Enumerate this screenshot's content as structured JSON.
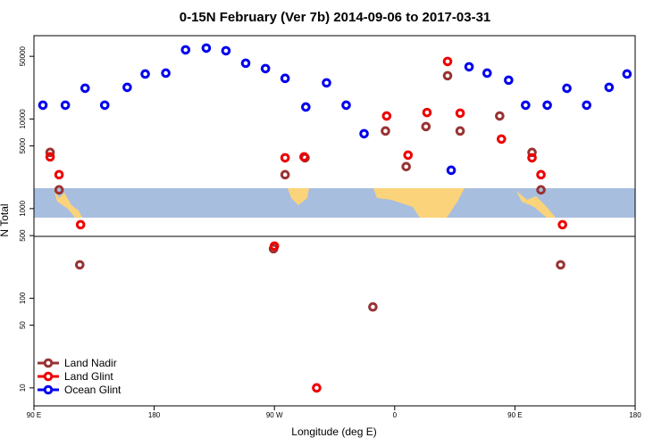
{
  "chart_data": {
    "type": "scatter",
    "title": "0-15N February (Ver 7b)   2014-09-06 to 2017-03-31",
    "x_label": "Longitude (deg E)",
    "y_label": "N Total",
    "log_y": true,
    "xlim": [
      90,
      540
    ],
    "ylim": [
      6.3,
      85000
    ],
    "xticks": [
      {
        "value": 90,
        "label": "90 E"
      },
      {
        "value": 180,
        "label": "180"
      },
      {
        "value": 270,
        "label": "90 W"
      },
      {
        "value": 360,
        "label": "0"
      },
      {
        "value": 450,
        "label": "90 E"
      },
      {
        "value": 540,
        "label": "180"
      }
    ],
    "yticks": [
      10,
      50,
      100,
      500,
      1000,
      5000,
      10000,
      50000
    ],
    "legend": "bottom-left",
    "series": [
      {
        "name": "Land Nadir",
        "color": "#993333",
        "x": [
          102.1,
          108.8,
          124.3,
          269.3,
          278,
          292.9,
          343.7,
          353.1,
          368.6,
          383.4,
          399.6,
          409,
          438.6,
          462.8,
          469.5,
          484.2
        ],
        "values": [
          4240,
          1620,
          236,
          357,
          2390,
          3690,
          80,
          7350,
          2940,
          8230,
          30400,
          7350,
          10800,
          4240,
          1620,
          236
        ]
      },
      {
        "name": "Land Glint",
        "color": "#ee0000",
        "x": [
          102.1,
          108.8,
          124.9,
          270,
          278,
          292.2,
          301.6,
          354,
          370,
          384.2,
          399.6,
          409,
          439.9,
          462.8,
          469.5,
          485.6
        ],
        "values": [
          3780,
          2390,
          662,
          382,
          3690,
          3780,
          10,
          10800,
          3950,
          11800,
          43800,
          11600,
          5970,
          3690,
          2390,
          662
        ]
      },
      {
        "name": "Ocean Glint",
        "color": "#0000ee",
        "x": [
          96.7,
          113.5,
          128.3,
          143,
          159.8,
          173.3,
          188.7,
          203.5,
          219,
          233.7,
          248.5,
          263.3,
          278,
          293.5,
          309,
          323.7,
          337.1,
          402.3,
          415.7,
          429.2,
          445.3,
          458,
          474.2,
          488.9,
          503.7,
          520.5,
          533.9
        ],
        "values": [
          14260,
          14260,
          22030,
          14260,
          22550,
          31770,
          32500,
          59000,
          61800,
          57700,
          41900,
          36500,
          28400,
          13600,
          25300,
          14260,
          6850,
          2680,
          38200,
          32500,
          27100,
          14260,
          14260,
          22000,
          14260,
          22550,
          31770
        ]
      }
    ]
  }
}
